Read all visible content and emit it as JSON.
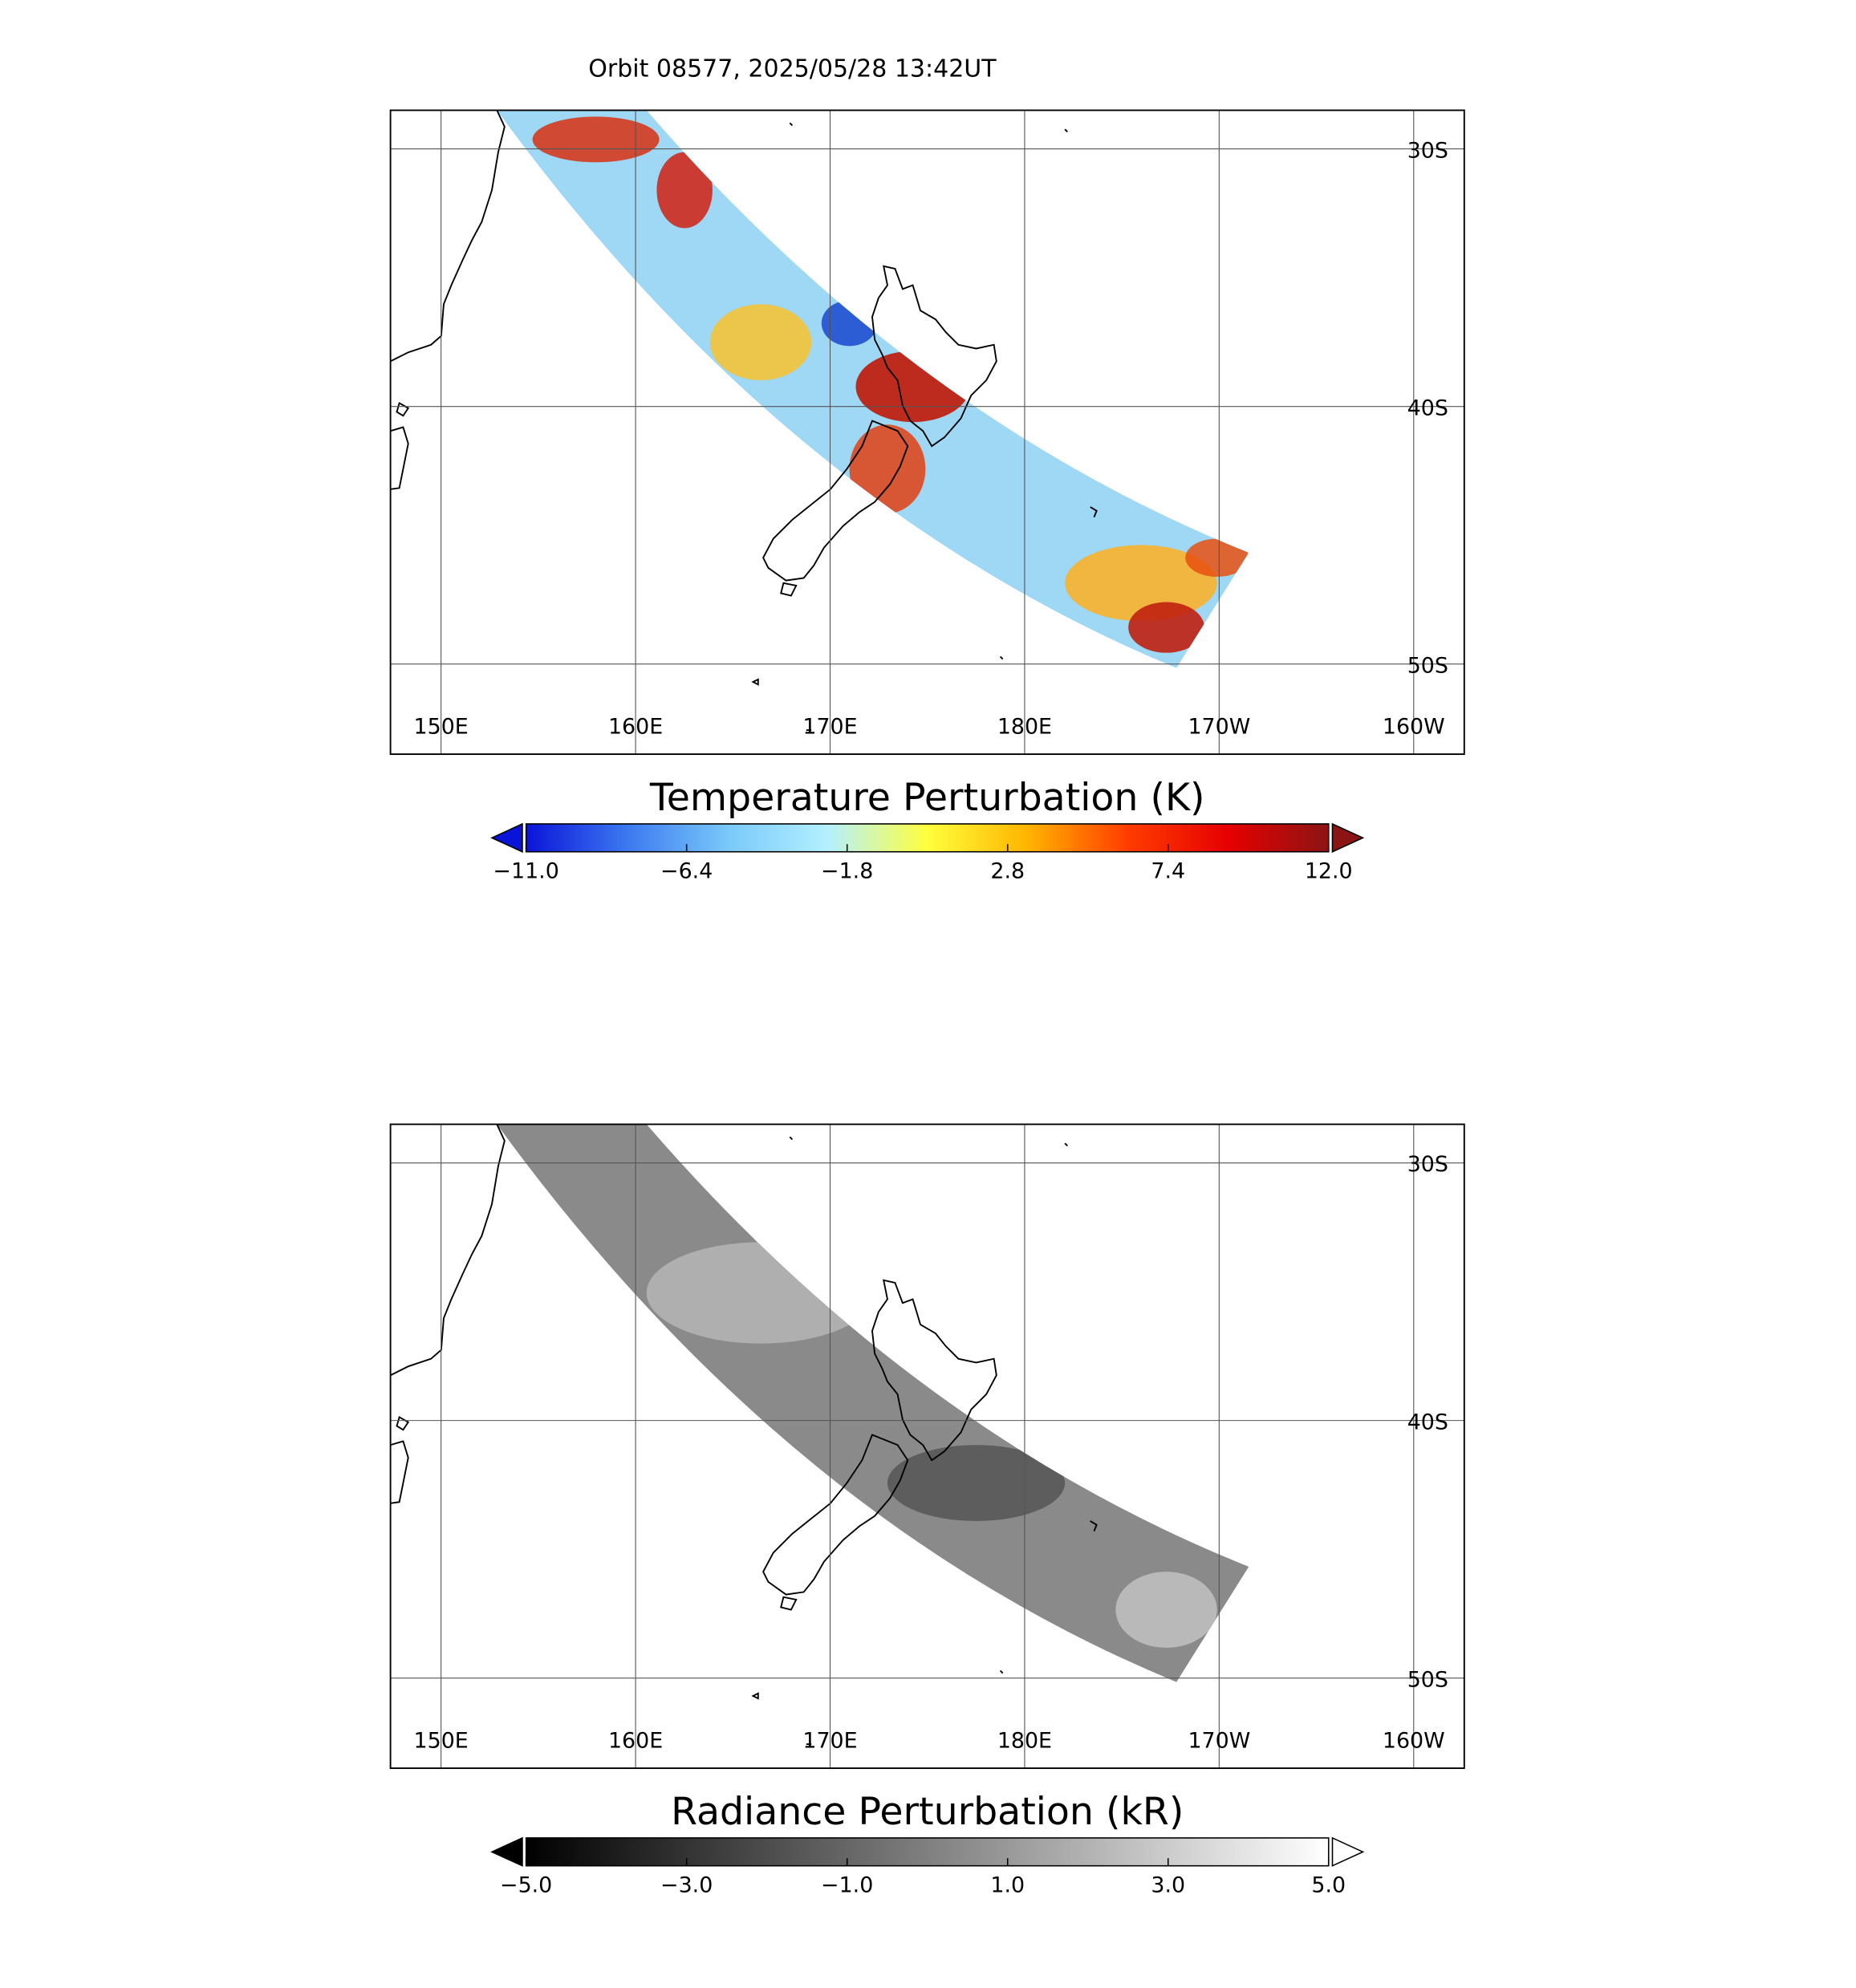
{
  "title": "Orbit 08577, 2025/05/28 13:42UT",
  "panels": [
    {
      "map": {
        "xlim": [
          147.4,
          -157.4
        ],
        "ylim": [
          -53.5,
          -28.5
        ],
        "xticks": [
          {
            "value": 150,
            "label": "150E"
          },
          {
            "value": 160,
            "label": "160E"
          },
          {
            "value": 170,
            "label": "170E"
          },
          {
            "value": 180,
            "label": "180E"
          },
          {
            "value": -170,
            "label": "170W"
          },
          {
            "value": -160,
            "label": "160W"
          }
        ],
        "yticks": [
          {
            "value": -30,
            "label": "30S"
          },
          {
            "value": -40,
            "label": "40S"
          },
          {
            "value": -50,
            "label": "50S"
          }
        ],
        "grid": true
      },
      "colorbar": {
        "title": "Temperature Perturbation (K)",
        "lim": [
          -11,
          12
        ],
        "ticks": [
          {
            "value": -11,
            "label": "−11.0"
          },
          {
            "value": -6.4,
            "label": "−6.4"
          },
          {
            "value": -1.8,
            "label": "−1.8"
          },
          {
            "value": 2.8,
            "label": "2.8"
          },
          {
            "value": 7.4,
            "label": "7.4"
          },
          {
            "value": 12,
            "label": "12.0"
          }
        ],
        "colormap": [
          "#0a14d8",
          "#3c78f0",
          "#78c8fa",
          "#b4f0ff",
          "#ffff3c",
          "#ffb400",
          "#ff3c00",
          "#e60000",
          "#8c1414"
        ]
      }
    },
    {
      "map": {
        "xlim": [
          147.4,
          -157.4
        ],
        "ylim": [
          -53.5,
          -28.5
        ],
        "xticks": [
          {
            "value": 150,
            "label": "150E"
          },
          {
            "value": 160,
            "label": "160E"
          },
          {
            "value": 170,
            "label": "170E"
          },
          {
            "value": 180,
            "label": "180E"
          },
          {
            "value": -170,
            "label": "170W"
          },
          {
            "value": -160,
            "label": "160W"
          }
        ],
        "yticks": [
          {
            "value": -30,
            "label": "30S"
          },
          {
            "value": -40,
            "label": "40S"
          },
          {
            "value": -50,
            "label": "50S"
          }
        ],
        "grid": true
      },
      "colorbar": {
        "title": "Radiance Perturbation (kR)",
        "lim": [
          -5,
          5
        ],
        "ticks": [
          {
            "value": -5,
            "label": "−5.0"
          },
          {
            "value": -3,
            "label": "−3.0"
          },
          {
            "value": -1,
            "label": "−1.0"
          },
          {
            "value": 1,
            "label": "1.0"
          },
          {
            "value": 3,
            "label": "3.0"
          },
          {
            "value": 5,
            "label": "5.0"
          }
        ],
        "colormap": [
          "#000000",
          "#ffffff"
        ]
      }
    }
  ]
}
